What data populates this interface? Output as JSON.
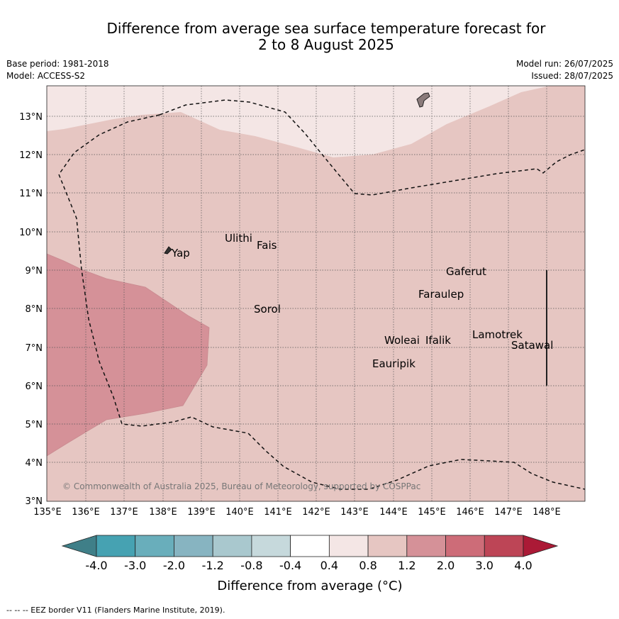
{
  "header": {
    "title_line1": "Difference from average sea surface temperature forecast for",
    "title_line2": "2 to 8 August 2025",
    "base_period": "Base period: 1981-2018",
    "model": "Model: ACCESS-S2",
    "model_run": "Model run: 26/07/2025",
    "issued": "Issued: 28/07/2025"
  },
  "map": {
    "lat_labels": [
      "13°N",
      "12°N",
      "11°N",
      "10°N",
      "9°N",
      "8°N",
      "7°N",
      "6°N",
      "5°N",
      "4°N",
      "3°N"
    ],
    "lon_labels": [
      "135°E",
      "136°E",
      "137°E",
      "138°E",
      "139°E",
      "140°E",
      "141°E",
      "142°E",
      "143°E",
      "144°E",
      "145°E",
      "146°E",
      "147°E",
      "148°E"
    ],
    "places": [
      "Yap",
      "Ulithi",
      "Fais",
      "Sorol",
      "Gaferut",
      "Faraulep",
      "Woleai",
      "Ifalik",
      "Lamotrek",
      "Satawal",
      "Eauripik"
    ],
    "copyright": "© Commonwealth of Australia 2025, Bureau of Meteorology, supported by COSPPac",
    "region_colors": {
      "light": "#f4e6e5",
      "mid": "#e6c6c2",
      "warm": "#d59198"
    }
  },
  "legend": {
    "tick_labels": [
      "-4.0",
      "-3.0",
      "-2.0",
      "-1.2",
      "-0.8",
      "-0.4",
      "0.4",
      "0.8",
      "1.2",
      "2.0",
      "3.0",
      "4.0"
    ],
    "colors": [
      "#3f7f88",
      "#46a2b2",
      "#69aebb",
      "#87b4c1",
      "#a9c8ce",
      "#c6d9dc",
      "#ffffff",
      "#f4e6e5",
      "#e6c6c2",
      "#d59198",
      "#cd6c78",
      "#bd4556",
      "#ab1a36"
    ],
    "title": "Difference from average (°C)"
  },
  "footer": {
    "eez_note": "--  --  -- EEZ border V11 (Flanders Marine Institute, 2019)."
  }
}
